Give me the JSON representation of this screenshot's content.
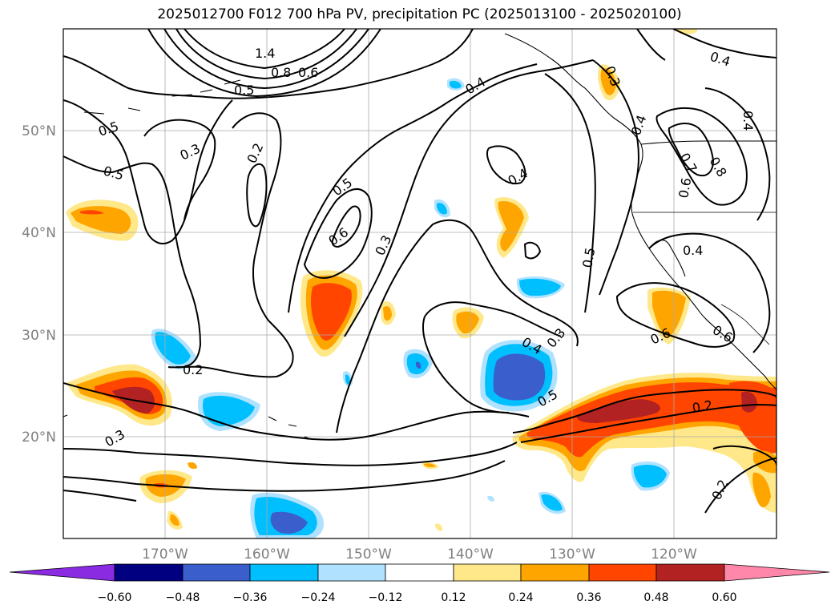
{
  "title": "2025012700 F012 700 hPa PV, precipitation PC (2025013100 - 2025020100)",
  "map": {
    "lon_range": [
      -180,
      -110
    ],
    "lat_range": [
      10,
      60
    ],
    "lon_ticks": [
      "170°W",
      "160°W",
      "150°W",
      "140°W",
      "130°W",
      "120°W"
    ],
    "lat_ticks": [
      "20°N",
      "30°N",
      "40°N",
      "50°N"
    ],
    "grid": true,
    "projection": "cylindrical"
  },
  "contour_labels": [
    "1.4",
    "0.8",
    "0.6",
    "0.5",
    "0.5",
    "0.5",
    "0.3",
    "0.2",
    "0.2",
    "0.4",
    "0.5",
    "0.6",
    "0.3",
    "0.4",
    "0.3",
    "0.4",
    "0.5",
    "0.3",
    "0.4",
    "0.5",
    "0.4",
    "0.7",
    "0.8",
    "0.6",
    "0.4",
    "0.6",
    "0.6",
    "0.2",
    "0.2",
    "0.3",
    "0.4"
  ],
  "colorbar": {
    "ticks": [
      "−0.60",
      "−0.48",
      "−0.36",
      "−0.24",
      "−0.12",
      "0.12",
      "0.24",
      "0.36",
      "0.48",
      "0.60"
    ],
    "colors": [
      "#8a2be2",
      "#000080",
      "#3a5fcd",
      "#00bfff",
      "#b0e2ff",
      "#ffffff",
      "#ffe88a",
      "#ffa500",
      "#ff4500",
      "#b22222",
      "#ff88aa"
    ]
  },
  "colors": {
    "neg_light": "#b0e2ff",
    "neg_mid": "#00bfff",
    "neg_dark": "#3a5fcd",
    "pos_light": "#ffe88a",
    "pos_mid": "#ffa500",
    "pos_dark": "#ff4500",
    "pos_darker": "#b22222",
    "grid": "#aaaaaa",
    "tick_label": "#808080"
  }
}
